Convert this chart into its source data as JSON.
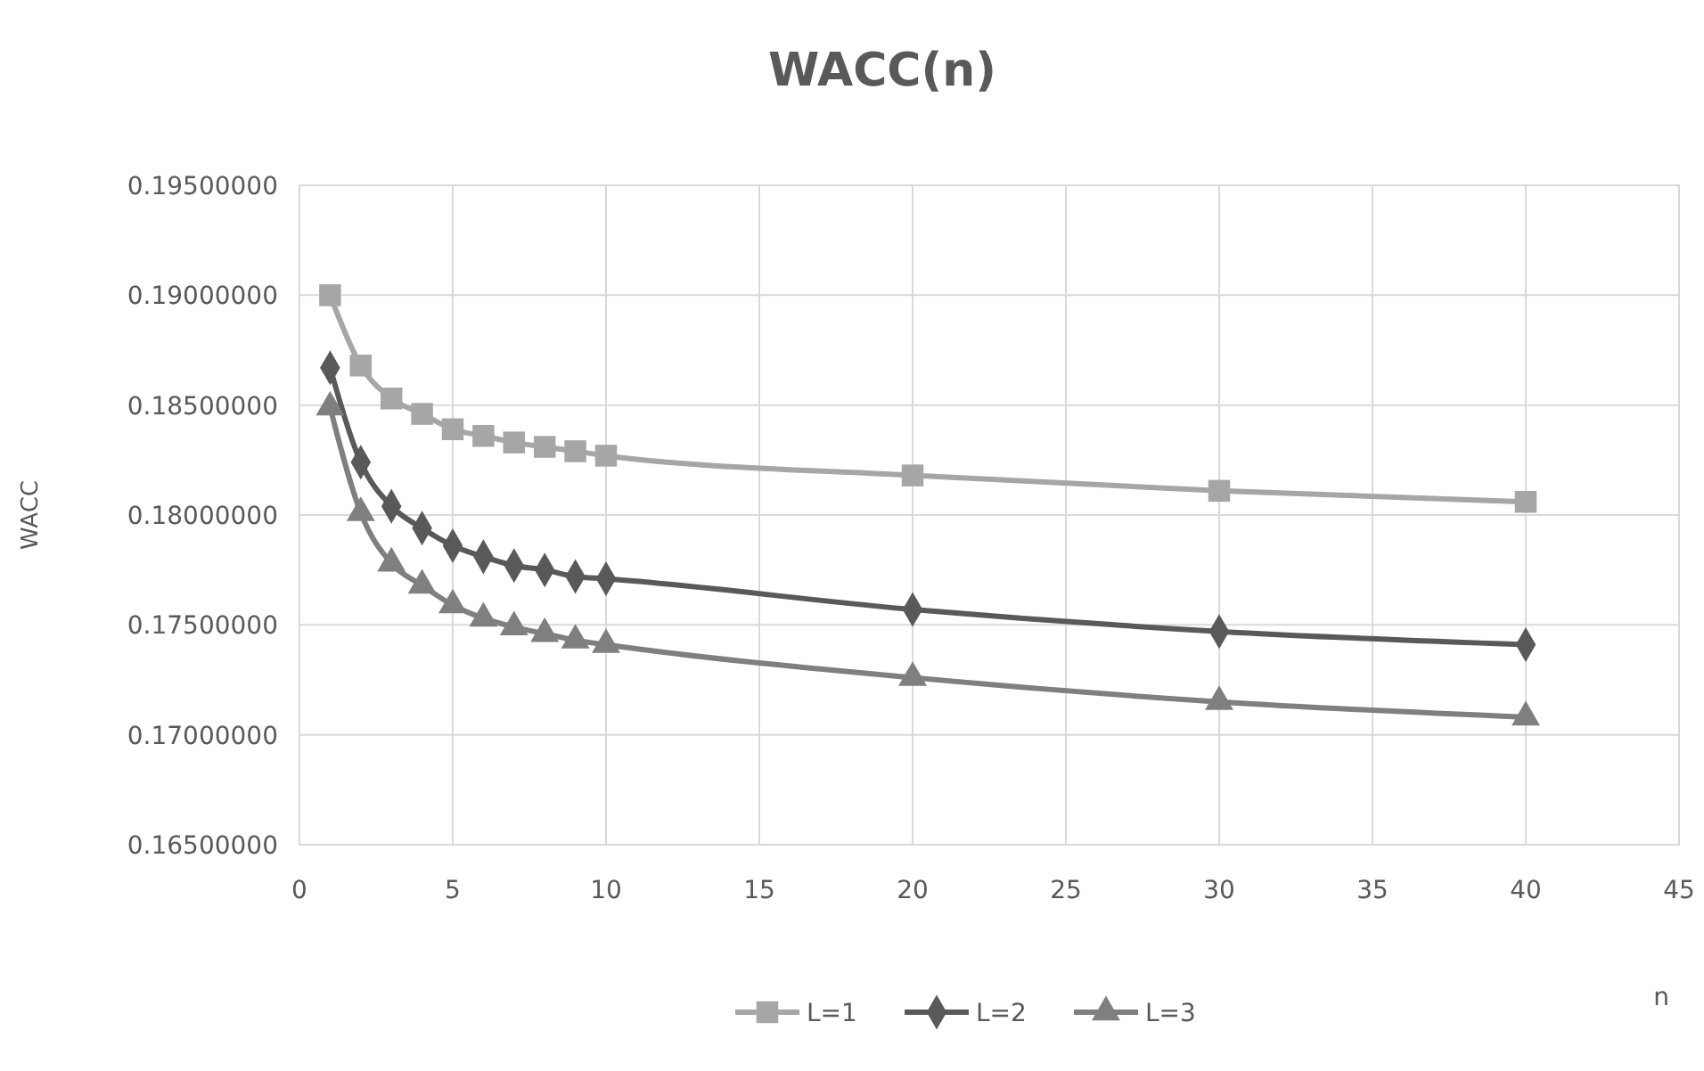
{
  "chart_data": {
    "type": "line",
    "title": "WACC(n)",
    "xlabel": "n",
    "ylabel": "WACC",
    "xlim": [
      0,
      45
    ],
    "xticks": [
      0,
      5,
      10,
      15,
      20,
      25,
      30,
      35,
      40,
      45
    ],
    "ylim": [
      0.165,
      0.195
    ],
    "yticks": [
      {
        "value": 0.165,
        "label": "0.16500000"
      },
      {
        "value": 0.17,
        "label": "0.17000000"
      },
      {
        "value": 0.175,
        "label": "0.17500000"
      },
      {
        "value": 0.18,
        "label": "0.18000000"
      },
      {
        "value": 0.185,
        "label": "0.18500000"
      },
      {
        "value": 0.19,
        "label": "0.19000000"
      },
      {
        "value": 0.195,
        "label": "0.19500000"
      }
    ],
    "grid": true,
    "legend": "bottom",
    "line_style": "solid",
    "x": [
      1,
      2,
      3,
      4,
      5,
      6,
      7,
      8,
      9,
      10,
      20,
      30,
      40
    ],
    "series": [
      {
        "name": "L=1",
        "color": "#a6a6a6",
        "marker": "square",
        "values": [
          0.19,
          0.1868,
          0.1853,
          0.1846,
          0.1839,
          0.1836,
          0.1833,
          0.1831,
          0.1829,
          0.1827,
          0.1818,
          0.1811,
          0.1806
        ]
      },
      {
        "name": "L=2",
        "color": "#595959",
        "marker": "diamond",
        "values": [
          0.1867,
          0.1824,
          0.1804,
          0.1794,
          0.1786,
          0.1781,
          0.1777,
          0.1775,
          0.1772,
          0.1771,
          0.1757,
          0.1747,
          0.1741
        ]
      },
      {
        "name": "L=3",
        "color": "#7f7f7f",
        "marker": "triangle",
        "values": [
          0.1849,
          0.1801,
          0.1778,
          0.1768,
          0.1759,
          0.1753,
          0.1749,
          0.1746,
          0.1743,
          0.1741,
          0.1726,
          0.1715,
          0.1708
        ]
      }
    ]
  }
}
